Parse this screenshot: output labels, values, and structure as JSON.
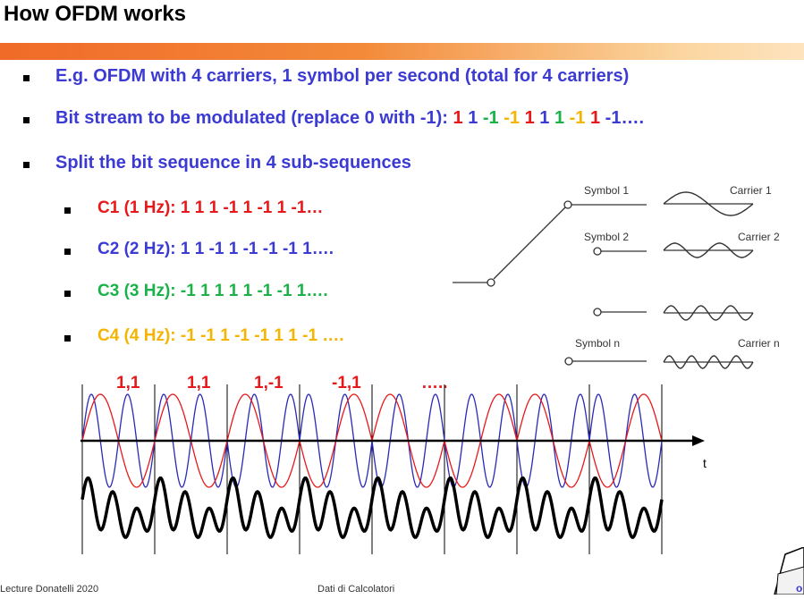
{
  "slide": {
    "title": "How OFDM works"
  },
  "bullets": {
    "b1": "E.g. OFDM with 4 carriers, 1 symbol per second (total for 4 carriers)",
    "b2_prefix": "Bit stream to be modulated (replace 0 with -1): ",
    "b2_bits": [
      {
        "text": "1",
        "color": "red"
      },
      {
        "text": "1",
        "color": "blue"
      },
      {
        "text": "-1",
        "color": "green"
      },
      {
        "text": "-1",
        "color": "yellow"
      },
      {
        "text": "1",
        "color": "red"
      },
      {
        "text": "1",
        "color": "blue"
      },
      {
        "text": "1",
        "color": "green"
      },
      {
        "text": "-1",
        "color": "yellow"
      },
      {
        "text": "1",
        "color": "red"
      },
      {
        "text": "-1….",
        "color": "blue"
      }
    ],
    "b3": "Split the bit sequence in 4 sub-sequences",
    "c1": "C1 (1 Hz): 1 1 1 -1 1 -1 1 -1…",
    "c2": "C2 (2 Hz): 1 1 -1 1 -1 -1 -1 1….",
    "c3": "C3 (3 Hz): -1 1 1 1 1 -1 -1 1….",
    "c4": "C4 (4 Hz): -1 -1 1 -1 -1 1 1 -1 …."
  },
  "diagram": {
    "symbol1": "Symbol 1",
    "symbol2": "Symbol 2",
    "symboln": "Symbol n",
    "carrier1": "Carrier 1",
    "carrier2": "Carrier 2",
    "carriern": "Carrier n"
  },
  "waveform": {
    "pairs": [
      "1,1",
      "1,1",
      "1,-1",
      "-1,1",
      "….."
    ],
    "t_label": "t"
  },
  "footer": {
    "left": "Lecture Donatelli 2020",
    "middle": "Dati di Calcolatori"
  },
  "colors": {
    "blue": "#3b3bd4",
    "red": "#e8181a",
    "green": "#1bb24a",
    "yellow": "#f4b400",
    "orange_bar": "#f06a28"
  }
}
